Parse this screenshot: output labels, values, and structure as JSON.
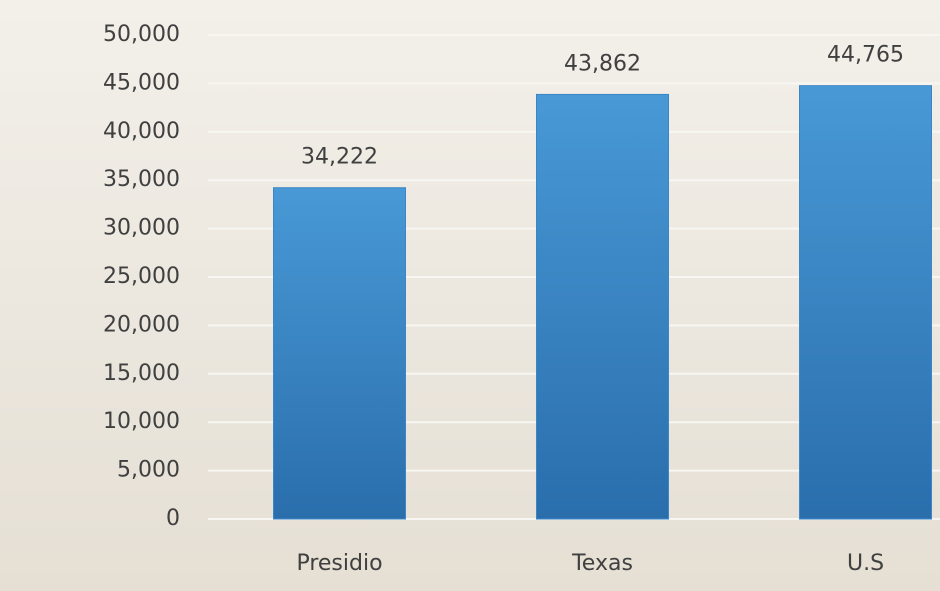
{
  "chart_data": {
    "type": "bar",
    "categories": [
      "Presidio",
      "Texas",
      "U.S"
    ],
    "values": [
      34222,
      43862,
      44765
    ],
    "value_labels": [
      "34,222",
      "43,862",
      "44,765"
    ],
    "color": "#3a86c8",
    "ylim": [
      0,
      50000
    ],
    "yticks": [
      0,
      {
        "value": 5000,
        "label": "5,000"
      },
      {
        "value": 10000,
        "label": "10,000"
      },
      {
        "value": 15000,
        "label": "15,000"
      },
      {
        "value": 20000,
        "label": "20,000"
      },
      {
        "value": 25000,
        "label": "25,000"
      },
      {
        "value": 30000,
        "label": "30,000"
      },
      {
        "value": 35000,
        "label": "35,000"
      },
      {
        "value": 40000,
        "label": "40,000"
      },
      {
        "value": 45000,
        "label": "45,000"
      },
      {
        "value": 50000,
        "label": "50,000"
      }
    ],
    "grid": true
  }
}
